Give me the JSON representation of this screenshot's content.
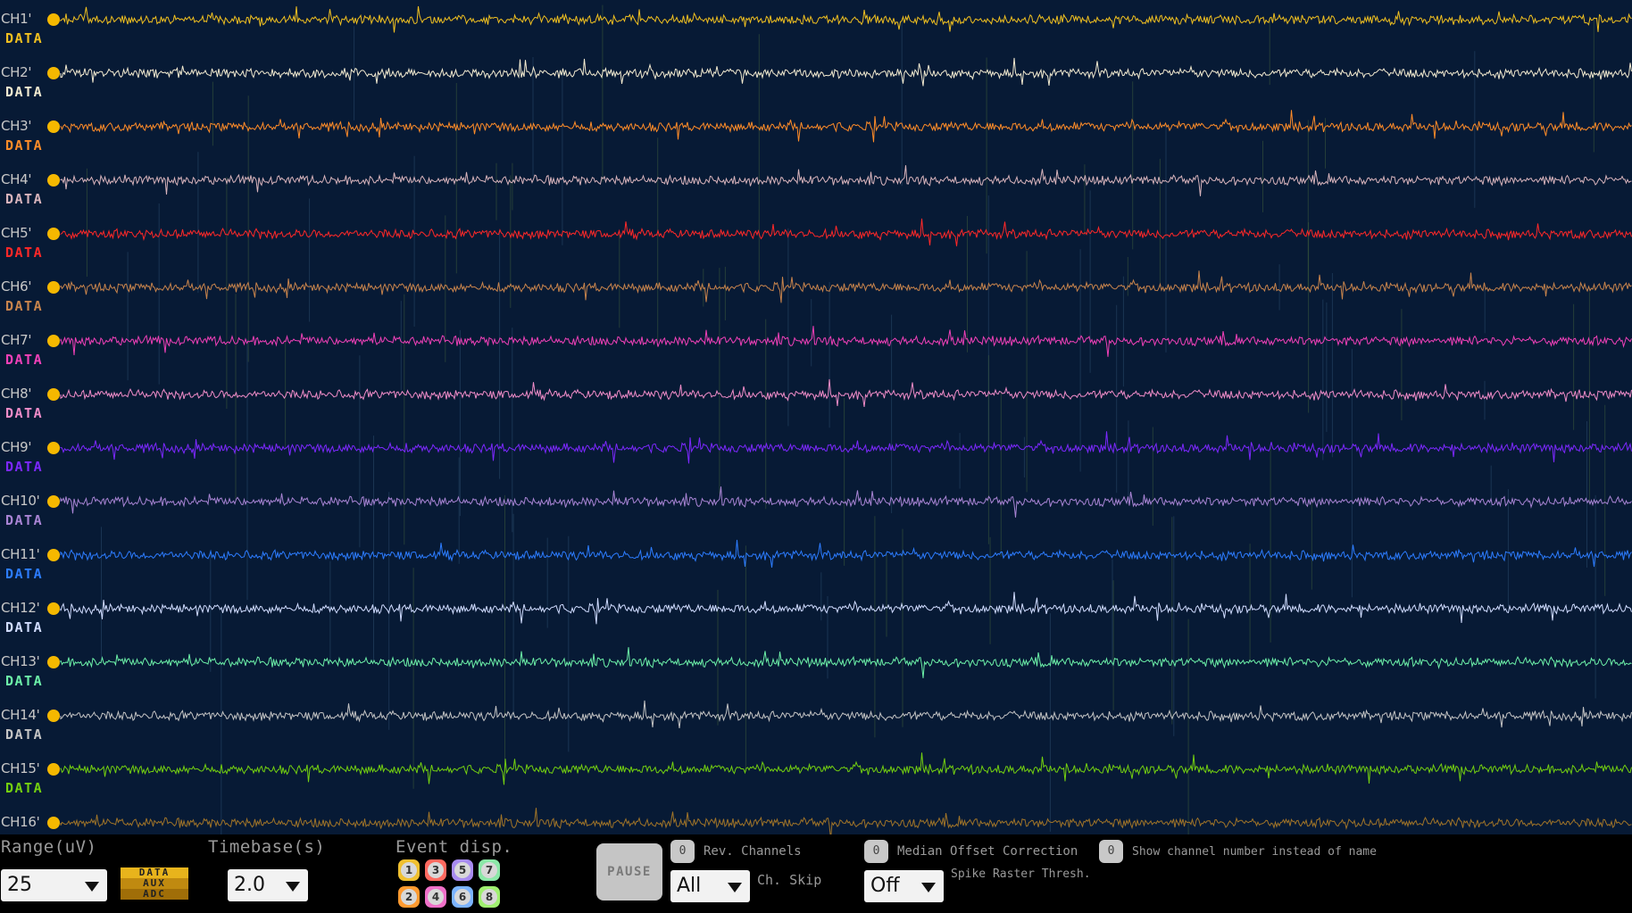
{
  "channels": [
    {
      "name": "CH1'",
      "type": "DATA",
      "color": "#f0c020"
    },
    {
      "name": "CH2'",
      "type": "DATA",
      "color": "#f2ead0"
    },
    {
      "name": "CH3'",
      "type": "DATA",
      "color": "#ff8c28"
    },
    {
      "name": "CH4'",
      "type": "DATA",
      "color": "#d8b4bc"
    },
    {
      "name": "CH5'",
      "type": "DATA",
      "color": "#ff2828"
    },
    {
      "name": "CH6'",
      "type": "DATA",
      "color": "#c8844c"
    },
    {
      "name": "CH7'",
      "type": "DATA",
      "color": "#f040b8"
    },
    {
      "name": "CH8'",
      "type": "DATA",
      "color": "#f08cc8"
    },
    {
      "name": "CH9'",
      "type": "DATA",
      "color": "#7c28ff"
    },
    {
      "name": "CH10'",
      "type": "DATA",
      "color": "#a884d4"
    },
    {
      "name": "CH11'",
      "type": "DATA",
      "color": "#2c7cff"
    },
    {
      "name": "CH12'",
      "type": "DATA",
      "color": "#d0dcff"
    },
    {
      "name": "CH13'",
      "type": "DATA",
      "color": "#6cf0a8"
    },
    {
      "name": "CH14'",
      "type": "DATA",
      "color": "#c4c4c4"
    },
    {
      "name": "CH15'",
      "type": "DATA",
      "color": "#74d010"
    },
    {
      "name": "CH16'",
      "type": "",
      "color": "#a07428"
    }
  ],
  "controls": {
    "range": {
      "label": "Range(uV)",
      "value": "25"
    },
    "data_types": [
      {
        "label": "DATA",
        "color": "#e8b41c"
      },
      {
        "label": "AUX",
        "color": "#c08a10"
      },
      {
        "label": "ADC",
        "color": "#a06e08"
      }
    ],
    "timebase": {
      "label": "Timebase(s)",
      "value": "2.0"
    },
    "event_display": {
      "label": "Event disp.",
      "buttons": [
        {
          "number": "1",
          "color": "#f0c030"
        },
        {
          "number": "3",
          "color": "#ff6a60"
        },
        {
          "number": "5",
          "color": "#a88cf0"
        },
        {
          "number": "7",
          "color": "#8ce8a8"
        },
        {
          "number": "2",
          "color": "#ff9a30"
        },
        {
          "number": "4",
          "color": "#f070c8"
        },
        {
          "number": "6",
          "color": "#7cb4ff"
        },
        {
          "number": "8",
          "color": "#a0f070"
        }
      ]
    },
    "pause_label": "PAUSE",
    "rev_channels": {
      "toggle": "0",
      "label": "Rev. Channels"
    },
    "ch_skip": {
      "value": "All",
      "label": "Ch. Skip"
    },
    "median_offset": {
      "toggle": "0",
      "label": "Median Offset Correction"
    },
    "spike_raster": {
      "value": "Off",
      "label": "Spike Raster Thresh."
    },
    "show_channel_number": {
      "toggle": "0",
      "label": "Show channel number instead of name"
    }
  }
}
